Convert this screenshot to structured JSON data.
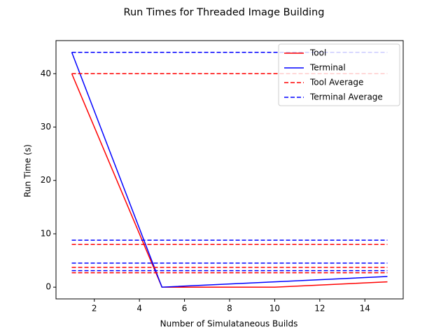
{
  "chart_data": {
    "type": "line",
    "title": "Run Times for Threaded Image Building",
    "x_label": "Number of Simulataneous Builds",
    "y_label": "Run Time (s)",
    "xlim": [
      0.3,
      15.7
    ],
    "ylim": [
      -2.2,
      46.2
    ],
    "xticks": [
      2,
      4,
      6,
      8,
      10,
      12,
      14
    ],
    "yticks": [
      0,
      10,
      20,
      30,
      40
    ],
    "legend": "upper right",
    "series": [
      {
        "name": "Tool",
        "color": "#ff0000",
        "style": "solid",
        "x": [
          1,
          5,
          10,
          15
        ],
        "values": [
          40,
          0,
          0,
          1
        ]
      },
      {
        "name": "Terminal",
        "color": "#0000ff",
        "style": "solid",
        "x": [
          1,
          5,
          10,
          15
        ],
        "values": [
          44,
          0,
          1,
          2
        ]
      },
      {
        "name": "Tool Average",
        "color": "#ff0000",
        "style": "dashed",
        "span": [
          1,
          15
        ],
        "levels": [
          40,
          8,
          3.7,
          2.7
        ]
      },
      {
        "name": "Terminal Average",
        "color": "#0000ff",
        "style": "dashed",
        "span": [
          1,
          15
        ],
        "levels": [
          44,
          8.8,
          4.5,
          3.1
        ]
      }
    ]
  }
}
